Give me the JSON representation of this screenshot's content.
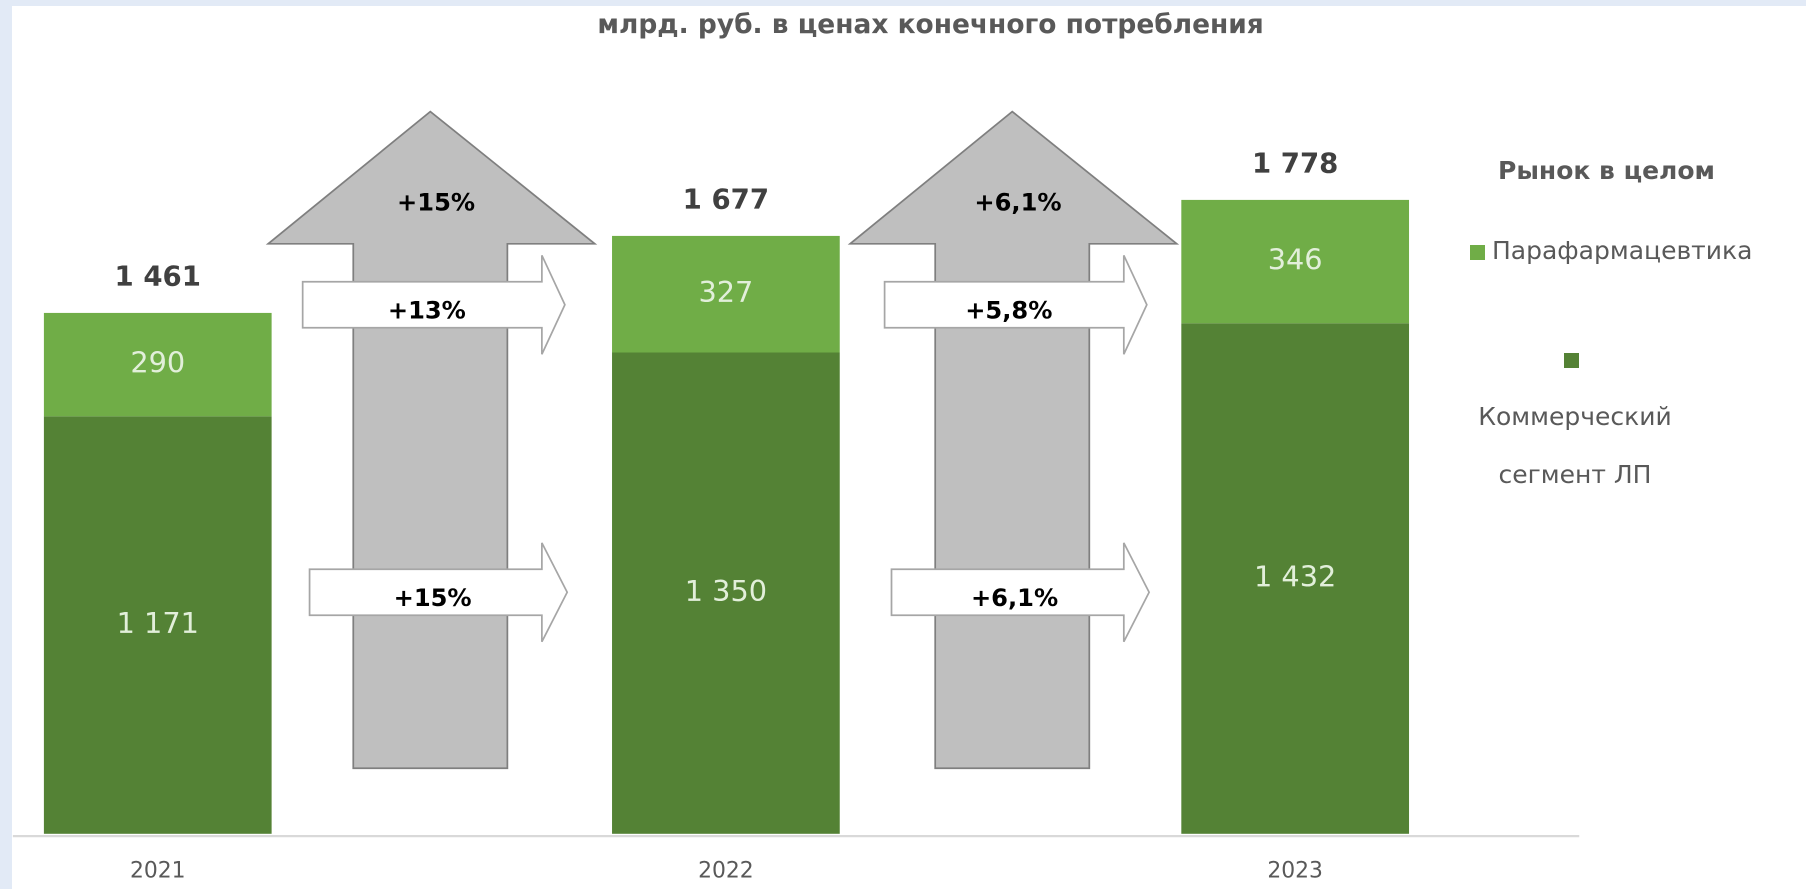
{
  "chart_data": {
    "type": "stacked_bar",
    "title": "млрд. руб. в ценах конечного потребления",
    "categories": [
      "2021",
      "2022",
      "2023"
    ],
    "series": [
      {
        "name": "Коммерческий сегмент ЛП",
        "color": "#548235",
        "values": [
          1171,
          1350,
          1432
        ],
        "value_labels": [
          "1 171",
          "1 350",
          "1 432"
        ]
      },
      {
        "name": "Парафармацевтика",
        "color": "#70ad47",
        "values": [
          290,
          327,
          346
        ]
      }
    ],
    "totals": [
      1461,
      1677,
      1778
    ],
    "total_labels": [
      "1 461",
      "1 677",
      "1 778"
    ],
    "legend_title": "Рынок в целом",
    "growth": [
      {
        "total": "+15%",
        "top": "+13%",
        "bottom": "+15%"
      },
      {
        "total": "+6,1%",
        "top": "+5,8%",
        "bottom": "+6,1%"
      }
    ],
    "ylim": [
      0,
      2000
    ]
  }
}
